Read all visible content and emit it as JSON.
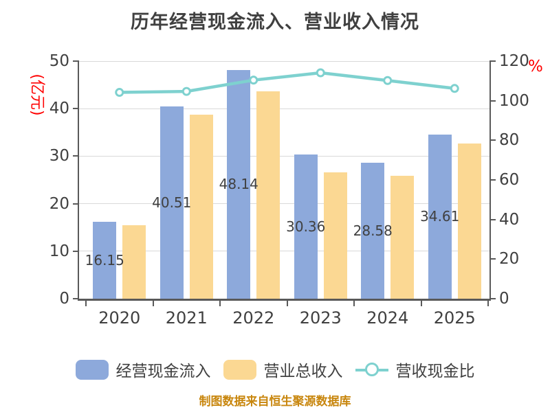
{
  "title": "历年经营现金流入、营业收入情况",
  "source_note": "制图数据来自恒生聚源数据库",
  "colors": {
    "title_text": "#404040",
    "tick_text": "#404040",
    "axis_line": "#595959",
    "grid_line": "#D9D9D9",
    "axis_name": "#FF0000",
    "source_text": "#C8860D",
    "background": "#FFFFFF"
  },
  "chart_data": {
    "type": "combo",
    "categories": [
      "2020",
      "2021",
      "2022",
      "2023",
      "2024",
      "2025"
    ],
    "series": [
      {
        "name": "经营现金流入",
        "type": "bar",
        "axis": "left",
        "color": "#8DA9DB",
        "values": [
          16.15,
          40.51,
          48.14,
          30.36,
          28.58,
          34.61
        ],
        "data_labels": [
          "16.15",
          "40.51",
          "48.14",
          "30.36",
          "28.58",
          "34.61"
        ]
      },
      {
        "name": "营业总收入",
        "type": "bar",
        "axis": "left",
        "color": "#FBD893",
        "values": [
          15.5,
          38.7,
          43.6,
          26.6,
          25.9,
          32.6
        ]
      },
      {
        "name": "营收现金比",
        "type": "line",
        "axis": "right",
        "color": "#7ED1CF",
        "values": [
          104.2,
          104.7,
          110.4,
          114.1,
          110.2,
          106.2
        ]
      }
    ],
    "left_axis": {
      "name": "(亿元)",
      "min": 0,
      "max": 50,
      "ticks": [
        0,
        10,
        20,
        30,
        40,
        50
      ]
    },
    "right_axis": {
      "name": "%",
      "min": 0,
      "max": 120,
      "ticks": [
        0,
        20,
        40,
        60,
        80,
        100,
        120
      ]
    },
    "grid": true,
    "legend_position": "bottom"
  }
}
